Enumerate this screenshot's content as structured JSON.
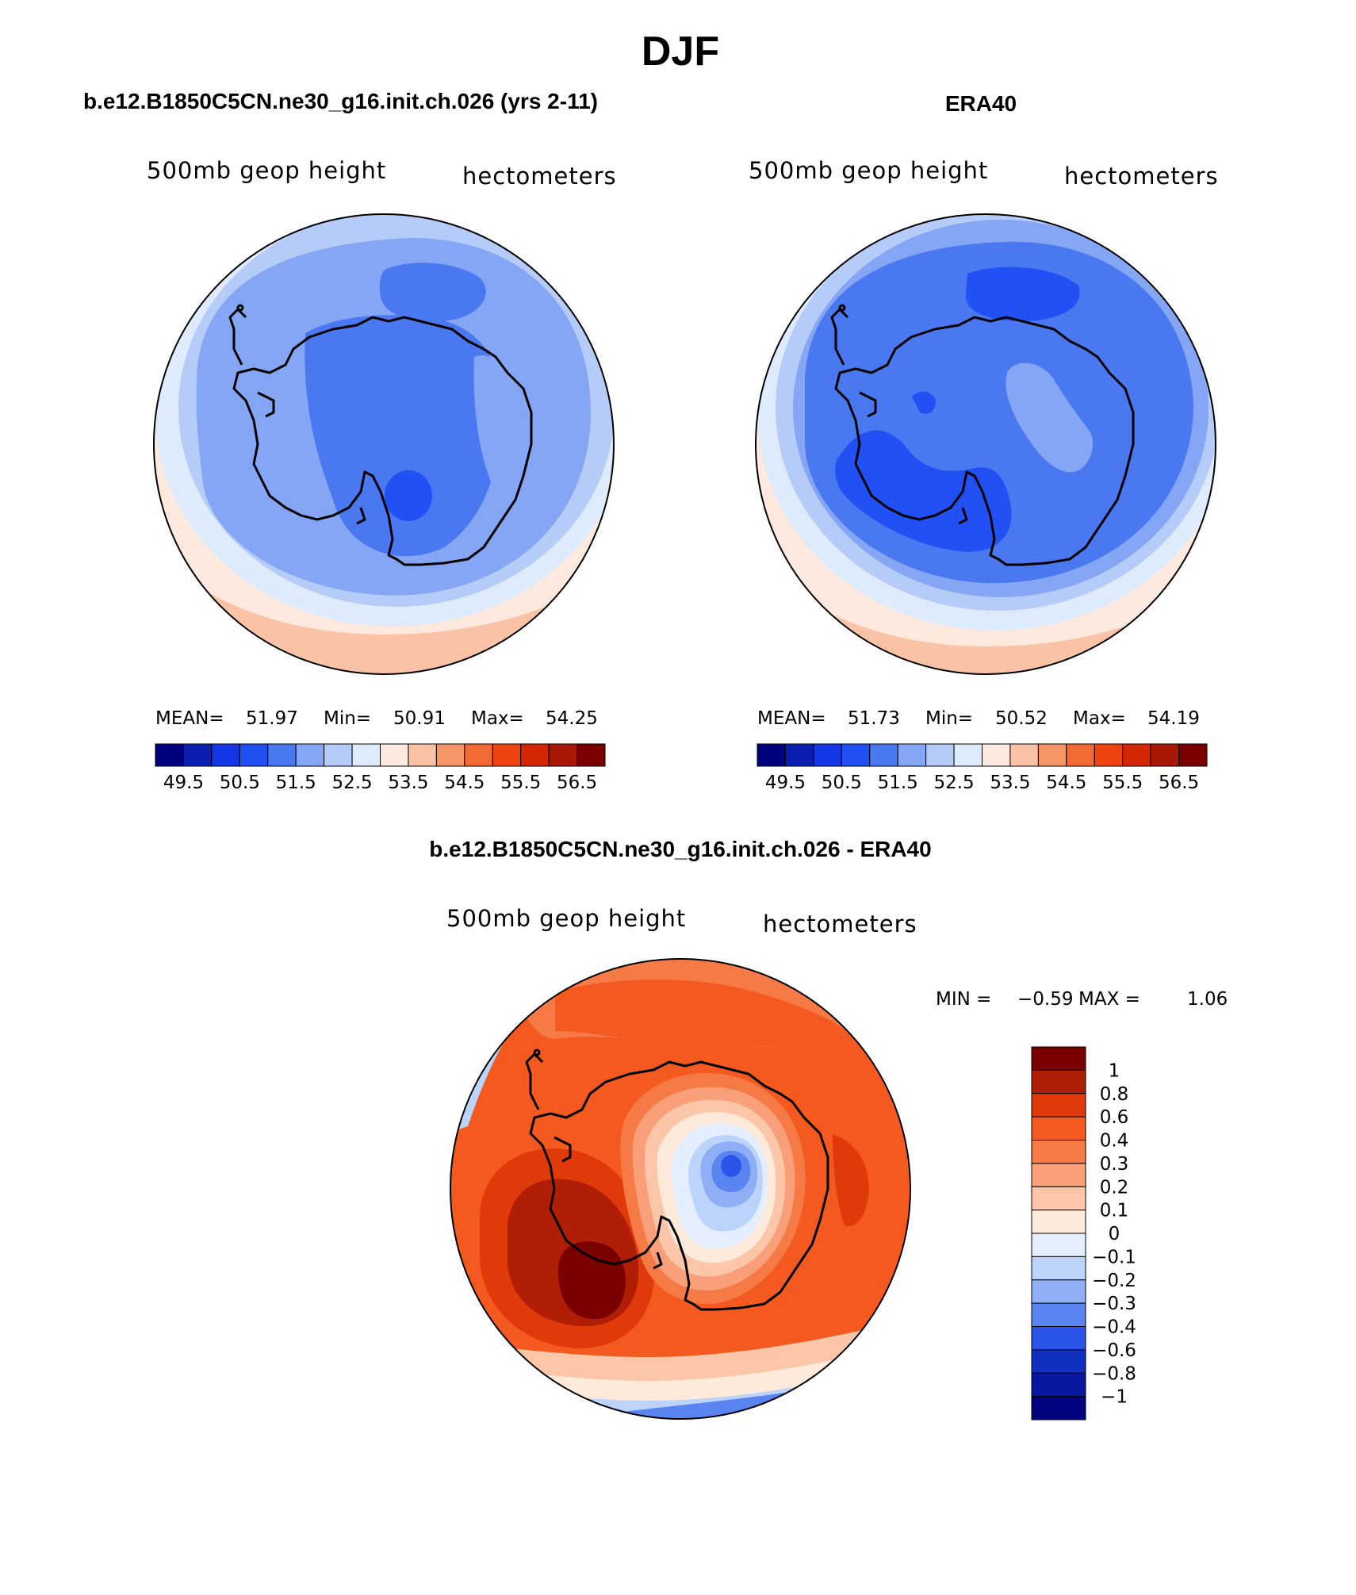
{
  "figure_title": "DJF",
  "panels": [
    {
      "header": "b.e12.B1850C5CN.ne30_g16.init.ch.026 (yrs 2-11)",
      "left_label": "500mb geop height",
      "right_label": "hectometers",
      "stats": {
        "mean_label": "MEAN=",
        "mean": "51.97",
        "min_label": "Min=",
        "min": "50.91",
        "max_label": "Max=",
        "max": "54.25"
      }
    },
    {
      "header": "ERA40",
      "left_label": "500mb geop height",
      "right_label": "hectometers",
      "stats": {
        "mean_label": "MEAN=",
        "mean": "51.73",
        "min_label": "Min=",
        "min": "50.52",
        "max_label": "Max=",
        "max": "54.19"
      }
    },
    {
      "header": "b.e12.B1850C5CN.ne30_g16.init.ch.026 - ERA40",
      "left_label": "500mb geop height",
      "right_label": "hectometers",
      "stats": {
        "min_label": "MIN =",
        "min": "−0.59",
        "max_label": "MAX =",
        "max": "1.06"
      }
    }
  ],
  "chart_data": [
    {
      "type": "heatmap",
      "projection": "polar stereographic (South Pole)",
      "levels": [
        "49.5",
        "50.5",
        "51.5",
        "52.5",
        "53.5",
        "54.5",
        "55.5",
        "56.5"
      ],
      "colors": [
        "#00007f",
        "#0a1eb0",
        "#1436e6",
        "#2150f5",
        "#4a78f0",
        "#84a6f5",
        "#b5cbf8",
        "#ddebfc",
        "#fde9de",
        "#fbc3a6",
        "#f69565",
        "#f36a35",
        "#f04410",
        "#d42505",
        "#a81805",
        "#7a0000"
      ],
      "domain_mean": 51.97,
      "domain_min": 50.91,
      "domain_max": 54.25
    },
    {
      "type": "heatmap",
      "projection": "polar stereographic (South Pole)",
      "levels": [
        "49.5",
        "50.5",
        "51.5",
        "52.5",
        "53.5",
        "54.5",
        "55.5",
        "56.5"
      ],
      "colors": [
        "#00007f",
        "#0a1eb0",
        "#1436e6",
        "#2150f5",
        "#4a78f0",
        "#84a6f5",
        "#b5cbf8",
        "#ddebfc",
        "#fde9de",
        "#fbc3a6",
        "#f69565",
        "#f36a35",
        "#f04410",
        "#d42505",
        "#a81805",
        "#7a0000"
      ],
      "domain_mean": 51.73,
      "domain_min": 50.52,
      "domain_max": 54.19
    },
    {
      "type": "heatmap",
      "projection": "polar stereographic (South Pole)",
      "levels": [
        "1",
        "0.8",
        "0.6",
        "0.4",
        "0.3",
        "0.2",
        "0.1",
        "0",
        "−0.1",
        "−0.2",
        "−0.3",
        "−0.4",
        "−0.6",
        "−0.8",
        "−1"
      ],
      "colors": [
        "#7a0000",
        "#b01e05",
        "#e03a0a",
        "#f45a20",
        "#f67a45",
        "#f9a07a",
        "#fcc7a8",
        "#fdeadb",
        "#e3efff",
        "#bcd4fb",
        "#8eaff5",
        "#5a84f0",
        "#2a55e8",
        "#1030c0",
        "#0818a0",
        "#00007f"
      ],
      "domain_min": -0.59,
      "domain_max": 1.06
    }
  ]
}
